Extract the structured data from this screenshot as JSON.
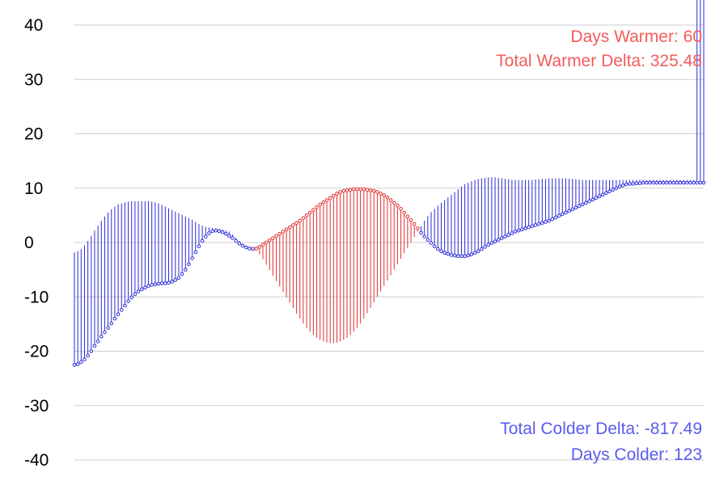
{
  "chart_data": {
    "type": "line",
    "title": "",
    "xlabel": "",
    "ylabel": "",
    "ylim": [
      -40,
      40
    ],
    "yticks": [
      40,
      30,
      20,
      10,
      0,
      -10,
      -20,
      -30,
      -40
    ],
    "grid": true,
    "colors": {
      "warmer": "#e03030",
      "colder": "#2a2ad8",
      "stat_warmer": "#f25c5c",
      "stat_colder": "#5a5af0"
    },
    "stats": {
      "days_warmer": "Days Warmer: 60",
      "total_warmer_delta": "Total Warmer Delta: 325.48",
      "total_colder_delta": "Total Colder Delta: -817.49",
      "days_colder": "Days Colder: 123"
    },
    "series": [
      {
        "values": [
          -22.5,
          -22.4,
          -22.0,
          -21.5,
          -20.8,
          -20.0,
          -19.0,
          -18.2,
          -17.3,
          -16.5,
          -15.7,
          -14.9,
          -14.0,
          -13.2,
          -12.4,
          -11.6,
          -10.8,
          -10.1,
          -9.5,
          -9.0,
          -8.6,
          -8.3,
          -8.0,
          -7.8,
          -7.7,
          -7.6,
          -7.5,
          -7.5,
          -7.4,
          -7.2,
          -6.9,
          -6.5,
          -5.8,
          -5.0,
          -4.0,
          -2.9,
          -1.8,
          -0.7,
          0.3,
          1.1,
          1.7,
          2.1,
          2.2,
          2.1,
          1.9,
          1.6,
          1.2,
          0.8,
          0.3,
          -0.2,
          -0.6,
          -0.9,
          -1.1,
          -1.2,
          -1.1,
          -0.8,
          -0.4,
          0.0,
          0.4,
          0.8,
          1.2,
          1.6,
          2.0,
          2.4,
          2.8,
          3.2,
          3.6,
          4.0,
          4.5,
          5.0,
          5.5,
          6.0,
          6.5,
          7.0,
          7.4,
          7.8,
          8.2,
          8.6,
          9.0,
          9.3,
          9.5,
          9.6,
          9.7,
          9.8,
          9.8,
          9.8,
          9.8,
          9.7,
          9.6,
          9.5,
          9.3,
          9.0,
          8.7,
          8.3,
          7.8,
          7.3,
          6.8,
          6.2,
          5.5,
          4.8,
          4.1,
          3.4,
          2.6,
          1.8,
          1.1,
          0.5,
          -0.1,
          -0.7,
          -1.2,
          -1.6,
          -1.9,
          -2.1,
          -2.3,
          -2.4,
          -2.5,
          -2.5,
          -2.5,
          -2.4,
          -2.2,
          -1.9,
          -1.6,
          -1.2,
          -0.8,
          -0.4,
          -0.1,
          0.2,
          0.5,
          0.8,
          1.1,
          1.4,
          1.7,
          2.0,
          2.2,
          2.4,
          2.6,
          2.8,
          3.0,
          3.2,
          3.4,
          3.6,
          3.8,
          4.0,
          4.3,
          4.6,
          4.9,
          5.2,
          5.5,
          5.8,
          6.1,
          6.4,
          6.7,
          7.0,
          7.3,
          7.6,
          7.9,
          8.2,
          8.5,
          8.8,
          9.1,
          9.4,
          9.7,
          10.0,
          10.3,
          10.5,
          10.7,
          10.8,
          10.8,
          10.9,
          10.9,
          11.0,
          11.0,
          11.0,
          11.0,
          11.0,
          11.0,
          11.0,
          11.0,
          11.0,
          11.0,
          11.0,
          11.0,
          11.0,
          11.0,
          11.0,
          11.0,
          11.0,
          11.0,
          11.0
        ]
      },
      {
        "values": [
          -1.8,
          -1.6,
          -1.2,
          -0.5,
          0.3,
          1.2,
          2.2,
          3.1,
          4.0,
          4.8,
          5.5,
          6.1,
          6.6,
          7.0,
          7.2,
          7.4,
          7.5,
          7.6,
          7.6,
          7.6,
          7.6,
          7.6,
          7.6,
          7.5,
          7.4,
          7.2,
          6.9,
          6.6,
          6.3,
          6.0,
          5.7,
          5.4,
          5.1,
          4.8,
          4.5,
          4.2,
          3.8,
          3.4,
          3.1,
          2.9,
          2.8,
          2.7,
          2.6,
          2.5,
          2.4,
          2.2,
          2.0,
          1.5,
          0.9,
          0.3,
          -0.2,
          -0.6,
          -0.9,
          -1.1,
          -1.5,
          -2.2,
          -3.1,
          -4.1,
          -5.1,
          -6.1,
          -7.1,
          -8.1,
          -9.1,
          -10.1,
          -11.1,
          -12.1,
          -13.1,
          -14.0,
          -14.9,
          -15.7,
          -16.4,
          -17.0,
          -17.5,
          -17.9,
          -18.2,
          -18.4,
          -18.5,
          -18.5,
          -18.4,
          -18.2,
          -17.9,
          -17.5,
          -17.0,
          -16.4,
          -15.7,
          -14.9,
          -14.0,
          -13.0,
          -12.0,
          -11.0,
          -10.0,
          -9.0,
          -8.0,
          -7.0,
          -6.0,
          -5.0,
          -4.0,
          -3.0,
          -2.0,
          -1.0,
          0.0,
          1.0,
          2.0,
          3.0,
          4.0,
          4.9,
          5.6,
          6.2,
          6.8,
          7.3,
          7.8,
          8.3,
          8.8,
          9.3,
          9.8,
          10.3,
          10.7,
          11.0,
          11.3,
          11.5,
          11.7,
          11.8,
          11.9,
          12.0,
          12.0,
          12.0,
          11.9,
          11.8,
          11.7,
          11.6,
          11.5,
          11.5,
          11.5,
          11.5,
          11.5,
          11.5,
          11.5,
          11.6,
          11.6,
          11.7,
          11.7,
          11.8,
          11.8,
          11.8,
          11.8,
          11.8,
          11.8,
          11.7,
          11.7,
          11.6,
          11.6,
          11.5,
          11.5,
          11.5,
          11.5,
          11.5,
          11.5,
          11.5,
          11.5,
          11.5,
          11.5,
          11.5,
          11.5,
          11.5,
          11.5,
          11.5,
          11.5,
          11.5,
          11.5,
          11.5,
          11.5,
          11.5,
          11.5,
          11.5,
          11.5,
          11.5,
          11.5,
          11.5,
          11.5,
          11.5,
          11.5,
          11.5,
          11.5,
          11.5,
          11.5
        ]
      }
    ]
  }
}
